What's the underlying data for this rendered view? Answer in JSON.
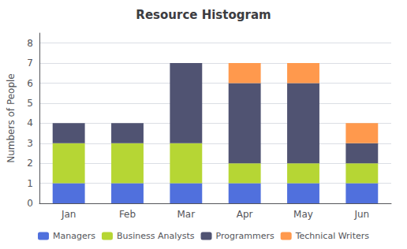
{
  "chart_data": {
    "type": "bar",
    "stacked": true,
    "title": "Resource Histogram",
    "ylabel": "Numbers of People",
    "categories": [
      "Jan",
      "Feb",
      "Mar",
      "Apr",
      "May",
      "Jun"
    ],
    "series": [
      {
        "name": "Managers",
        "values": [
          1,
          1,
          1,
          1,
          1,
          1
        ]
      },
      {
        "name": "Business Analysts",
        "values": [
          2,
          2,
          2,
          1,
          1,
          1
        ]
      },
      {
        "name": "Programmers",
        "values": [
          1,
          1,
          4,
          4,
          4,
          1
        ]
      },
      {
        "name": "Technical Writers",
        "values": [
          0,
          0,
          0,
          1,
          1,
          1
        ]
      }
    ],
    "ylim": [
      0,
      8.5
    ],
    "yticks": [
      0,
      1,
      2,
      3,
      4,
      5,
      6,
      7,
      8
    ],
    "grid": true,
    "legend": "bottom"
  }
}
